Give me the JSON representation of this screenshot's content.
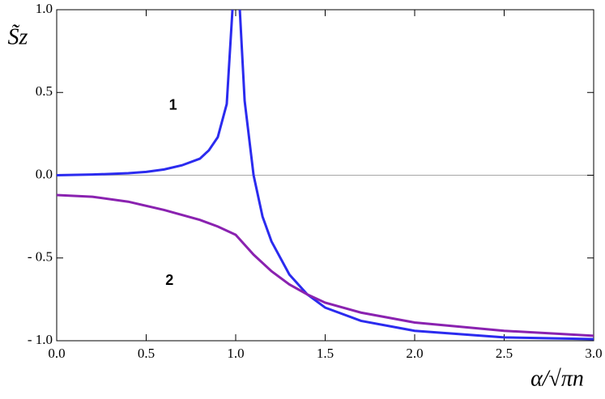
{
  "chart_data": {
    "type": "line",
    "x_label": "α/√πn",
    "y_label": "S̃z",
    "xlim": [
      0,
      3
    ],
    "ylim": [
      -1,
      1
    ],
    "xticks": [
      {
        "value": 0,
        "label": "0.0"
      },
      {
        "value": 0.5,
        "label": "0.5"
      },
      {
        "value": 1,
        "label": "1.0"
      },
      {
        "value": 1.5,
        "label": "1.5"
      },
      {
        "value": 2,
        "label": "2.0"
      },
      {
        "value": 2.5,
        "label": "2.5"
      },
      {
        "value": 3,
        "label": "3.0"
      }
    ],
    "yticks": [
      {
        "value": -1,
        "label": "- 1.0"
      },
      {
        "value": -0.5,
        "label": "- 0.5"
      },
      {
        "value": 0,
        "label": "0.0"
      },
      {
        "value": 0.5,
        "label": "0.5"
      },
      {
        "value": 1,
        "label": "1.0"
      }
    ],
    "zero_line": true,
    "series": [
      {
        "name": "1",
        "color": "#2b2bef",
        "x": [
          0,
          0.2,
          0.4,
          0.5,
          0.6,
          0.7,
          0.8,
          0.85,
          0.9,
          0.95,
          0.982,
          1.0,
          1.023,
          1.05,
          1.1,
          1.15,
          1.2,
          1.3,
          1.4,
          1.5,
          1.7,
          2.0,
          2.5,
          3.0
        ],
        "values": [
          0,
          0.004,
          0.012,
          0.02,
          0.035,
          0.06,
          0.1,
          0.15,
          0.23,
          0.43,
          1.0,
          null,
          1.0,
          0.45,
          0.0,
          -0.25,
          -0.4,
          -0.6,
          -0.72,
          -0.8,
          -0.88,
          -0.94,
          -0.98,
          -0.99
        ]
      },
      {
        "name": "2",
        "color": "#8a22b0",
        "x": [
          0,
          0.2,
          0.4,
          0.6,
          0.8,
          0.9,
          1.0,
          1.1,
          1.2,
          1.3,
          1.4,
          1.5,
          1.7,
          2.0,
          2.5,
          3.0
        ],
        "values": [
          -0.12,
          -0.13,
          -0.16,
          -0.21,
          -0.27,
          -0.31,
          -0.36,
          -0.48,
          -0.58,
          -0.66,
          -0.72,
          -0.77,
          -0.83,
          -0.89,
          -0.94,
          -0.97
        ]
      }
    ],
    "annotations": [
      {
        "text": "1",
        "x": 0.65,
        "y": 0.42
      },
      {
        "text": "2",
        "x": 0.63,
        "y": -0.64
      }
    ]
  }
}
